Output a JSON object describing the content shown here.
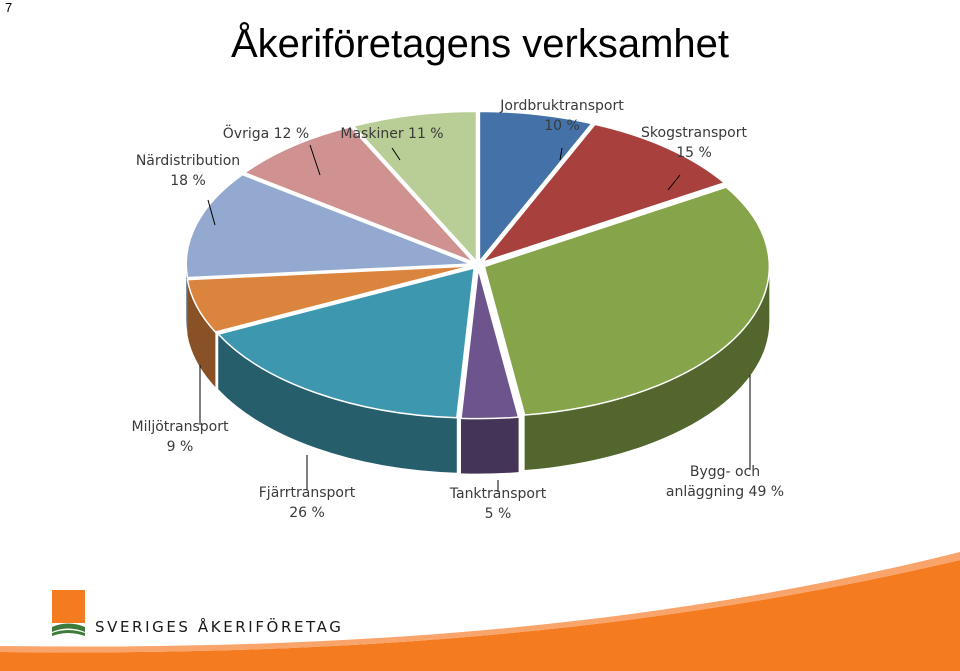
{
  "page_number": "7",
  "title": "Åkeriföretagens verksamhet",
  "brand": {
    "name": "SVERIGES ÅKERIFÖRETAG",
    "logo_icon": "sveriges-akeriforetag-logo",
    "accent": "#F47B20"
  },
  "chart_data": {
    "type": "pie",
    "title": "",
    "slices": [
      {
        "name": "Jordbruktransport",
        "value_label": "10 %",
        "value": 10,
        "color": "#4472A8"
      },
      {
        "name": "Skogstransport",
        "value_label": "15 %",
        "value": 15,
        "color": "#A8403E"
      },
      {
        "name": "Bygg- och anläggning",
        "value_label": "49 %",
        "value": 49,
        "color": "#86A44A"
      },
      {
        "name": "Tanktransport",
        "value_label": "5 %",
        "value": 5,
        "color": "#6E548D"
      },
      {
        "name": "Fjärrtransport",
        "value_label": "26 %",
        "value": 26,
        "color": "#3D97AE"
      },
      {
        "name": "Miljötransport",
        "value_label": "9 %",
        "value": 9,
        "color": "#DB843D"
      },
      {
        "name": "Närdistribution",
        "value_label": "18 %",
        "value": 18,
        "color": "#93A9CF"
      },
      {
        "name": "Övriga",
        "value_label": "12 %",
        "value": 12,
        "color": "#D09291"
      },
      {
        "name": "Maskiner",
        "value_label": "11 %",
        "value": 11,
        "color": "#B9CD96"
      }
    ]
  }
}
